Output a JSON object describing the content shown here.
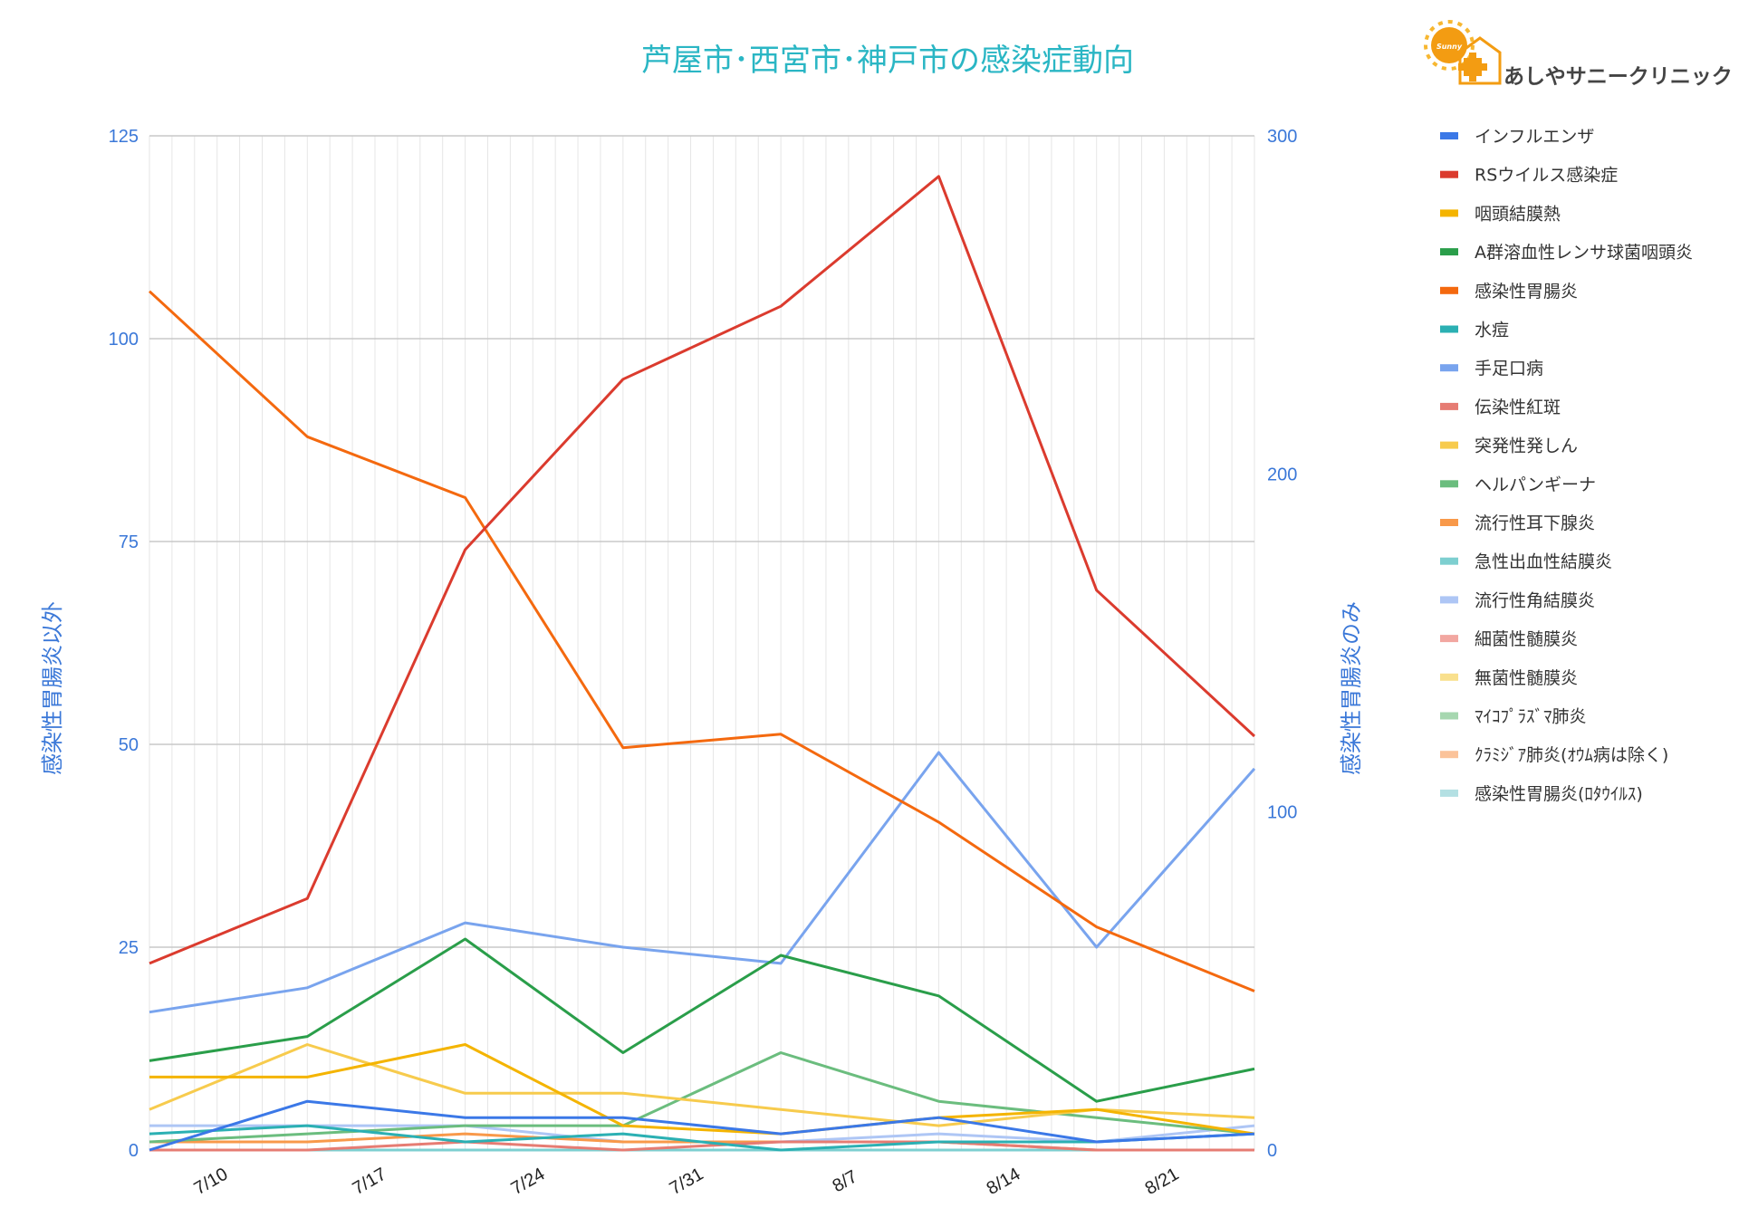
{
  "clinic": {
    "name": "あしやサニークリニック",
    "logo_text": "Sunny"
  },
  "chart_data": {
    "type": "line",
    "title": "芦屋市･西宮市･神戸市の感染症動向",
    "ylabel_left": "感染性胃腸炎以外",
    "ylabel_right": "感染性胃腸炎のみ",
    "ylim_left": [
      0,
      125
    ],
    "ylim_right": [
      0,
      300
    ],
    "yticks_left": [
      "0",
      "25",
      "50",
      "75",
      "100",
      "125"
    ],
    "yticks_right": [
      "0",
      "100",
      "200",
      "300"
    ],
    "xticks": [
      "7/10",
      "7/17",
      "7/24",
      "7/31",
      "8/7",
      "8/14",
      "8/21"
    ],
    "grid": true,
    "legend_position": "right",
    "x": [
      0,
      1,
      2,
      3,
      4,
      5,
      6,
      7
    ],
    "series": [
      {
        "name": "インフルエンザ",
        "color": "#3b78e7",
        "axis": "left",
        "values": [
          0,
          6,
          4,
          4,
          2,
          4,
          1,
          2
        ]
      },
      {
        "name": "RSウイルス感染症",
        "color": "#db3b2e",
        "axis": "left",
        "values": [
          23,
          31,
          74,
          95,
          104,
          120,
          69,
          51
        ]
      },
      {
        "name": "咽頭結膜熱",
        "color": "#f4b400",
        "axis": "left",
        "values": [
          9,
          9,
          13,
          3,
          2,
          4,
          5,
          2
        ]
      },
      {
        "name": "A群溶血性レンサ球菌咽頭炎",
        "color": "#2a9e4a",
        "axis": "left",
        "values": [
          11,
          14,
          26,
          12,
          24,
          19,
          6,
          10
        ]
      },
      {
        "name": "感染性胃腸炎",
        "color": "#f4690f",
        "axis": "right",
        "values": [
          254,
          211,
          193,
          119,
          123,
          97,
          66,
          47
        ]
      },
      {
        "name": "水痘",
        "color": "#2bb0b3",
        "axis": "left",
        "values": [
          2,
          3,
          1,
          2,
          0,
          1,
          1,
          2
        ]
      },
      {
        "name": "手足口病",
        "color": "#79a4ee",
        "axis": "left",
        "values": [
          17,
          20,
          28,
          25,
          23,
          49,
          25,
          47
        ]
      },
      {
        "name": "伝染性紅斑",
        "color": "#e67c73",
        "axis": "left",
        "values": [
          0,
          0,
          1,
          0,
          1,
          1,
          0,
          0
        ]
      },
      {
        "name": "突発性発しん",
        "color": "#f7cb4d",
        "axis": "left",
        "values": [
          5,
          13,
          7,
          7,
          5,
          3,
          5,
          4
        ]
      },
      {
        "name": "ヘルパンギーナ",
        "color": "#6bbd7e",
        "axis": "left",
        "values": [
          1,
          2,
          3,
          3,
          12,
          6,
          4,
          2
        ]
      },
      {
        "name": "流行性耳下腺炎",
        "color": "#f8994a",
        "axis": "left",
        "values": [
          1,
          1,
          2,
          1,
          1,
          1,
          0,
          0
        ]
      },
      {
        "name": "急性出血性結膜炎",
        "color": "#7dcfd0",
        "axis": "left",
        "values": [
          0,
          0,
          0,
          0,
          0,
          0,
          0,
          0
        ]
      },
      {
        "name": "流行性角結膜炎",
        "color": "#aec6f5",
        "axis": "left",
        "values": [
          3,
          3,
          3,
          1,
          1,
          2,
          1,
          3
        ]
      },
      {
        "name": "細菌性髄膜炎",
        "color": "#f2a7a1",
        "axis": "left",
        "values": [
          0,
          0,
          0,
          0,
          0,
          0,
          0,
          0
        ]
      },
      {
        "name": "無菌性髄膜炎",
        "color": "#f9e08d",
        "axis": "left",
        "values": [
          0,
          0,
          0,
          0,
          0,
          0,
          0,
          0
        ]
      },
      {
        "name": "ﾏｲｺﾌﾟﾗｽﾞﾏ肺炎",
        "color": "#a6d7b0",
        "axis": "left",
        "values": [
          0,
          0,
          0,
          0,
          0,
          0,
          0,
          0
        ]
      },
      {
        "name": "ｸﾗﾐｼﾞｱ肺炎(ｵｳﾑ病は除く)",
        "color": "#fbc39a",
        "axis": "left",
        "values": [
          0,
          0,
          0,
          0,
          0,
          0,
          0,
          0
        ]
      },
      {
        "name": "感染性胃腸炎(ﾛﾀｳｲﾙｽ)",
        "color": "#b4e0e3",
        "axis": "left",
        "values": [
          0,
          0,
          0,
          0,
          0,
          0,
          0,
          0
        ]
      }
    ]
  }
}
